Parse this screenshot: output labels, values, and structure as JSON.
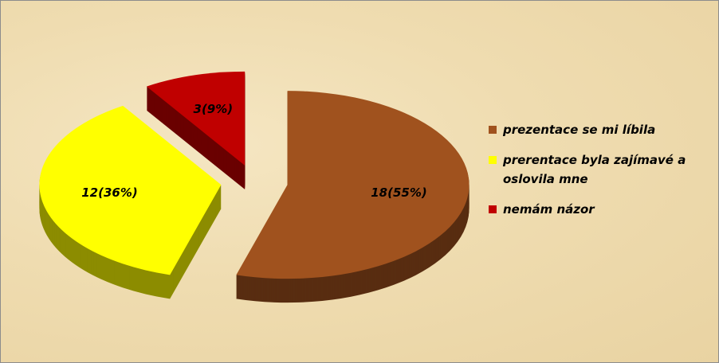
{
  "chart_data": {
    "type": "pie",
    "categories": [
      "prezentace se mi líbila",
      "prerentace byla zajímavé a oslovila mne",
      "nemám názor"
    ],
    "values": [
      18,
      12,
      3
    ],
    "value_labels": [
      "18(55%)",
      "12(36%)",
      "3(9%)"
    ],
    "colors": [
      "#a0521e",
      "#ffff00",
      "#c00000"
    ],
    "legend": "right"
  }
}
